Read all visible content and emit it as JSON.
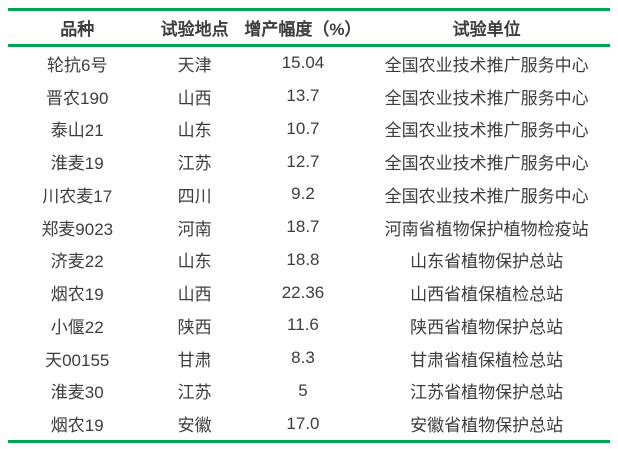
{
  "table": {
    "headers": [
      "品种",
      "试验地点",
      "增产幅度（%）",
      "试验单位"
    ],
    "rows": [
      [
        "轮抗6号",
        "天津",
        "15.04",
        "全国农业技术推广服务中心"
      ],
      [
        "晋农190",
        "山西",
        "13.7",
        "全国农业技术推广服务中心"
      ],
      [
        "泰山21",
        "山东",
        "10.7",
        "全国农业技术推广服务中心"
      ],
      [
        "淮麦19",
        "江苏",
        "12.7",
        "全国农业技术推广服务中心"
      ],
      [
        "川农麦17",
        "四川",
        "9.2",
        "全国农业技术推广服务中心"
      ],
      [
        "郑麦9023",
        "河南",
        "18.7",
        "河南省植物保护植物检疫站"
      ],
      [
        "济麦22",
        "山东",
        "18.8",
        "山东省植物保护总站"
      ],
      [
        "烟农19",
        "山西",
        "22.36",
        "山西省植保植检总站"
      ],
      [
        "小偃22",
        "陕西",
        "11.6",
        "陕西省植物保护总站"
      ],
      [
        "天00155",
        "甘肃",
        "8.3",
        "甘肃省植保植检总站"
      ],
      [
        "淮麦30",
        "江苏",
        "5",
        "江苏省植物保护总站"
      ],
      [
        "烟农19",
        "安徽",
        "17.0",
        "安徽省植物保护总站"
      ]
    ],
    "colors": {
      "rule_green": "#00A651",
      "text": "#3d3d3d"
    }
  }
}
